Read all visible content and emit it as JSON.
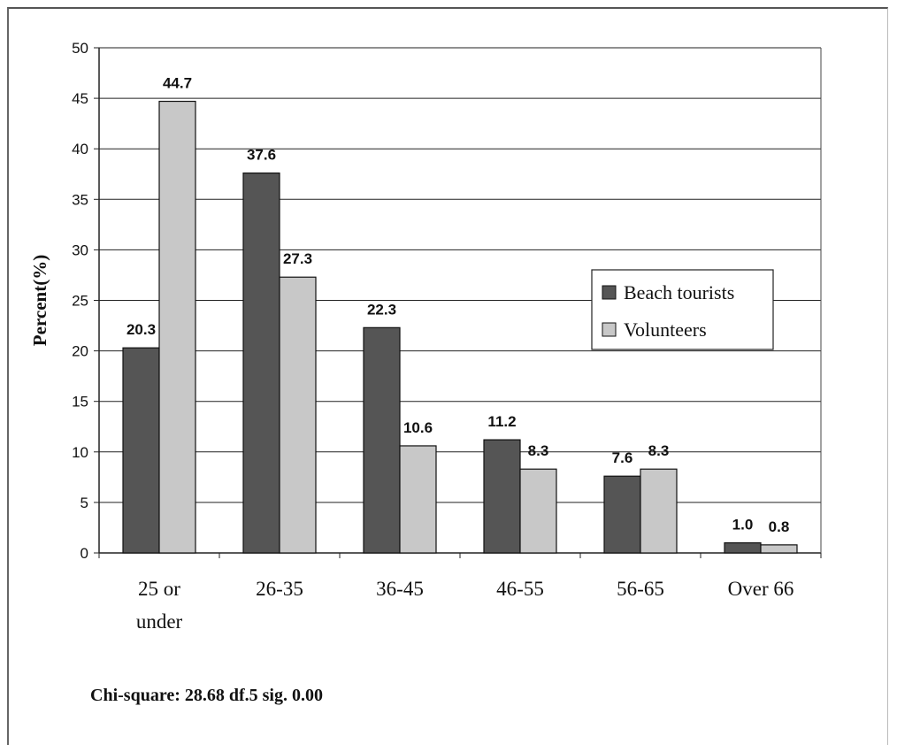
{
  "chart_data": {
    "type": "bar",
    "title": "",
    "xlabel": "",
    "ylabel": "Percent(%)",
    "ylim": [
      0,
      50
    ],
    "yticks": [
      0,
      5,
      10,
      15,
      20,
      25,
      30,
      35,
      40,
      45,
      50
    ],
    "grid": true,
    "legend_position": "right",
    "categories": [
      [
        "25 or",
        "under"
      ],
      [
        "26-35"
      ],
      [
        "36-45"
      ],
      [
        "46-55"
      ],
      [
        "56-65"
      ],
      [
        "Over 66"
      ]
    ],
    "series": [
      {
        "name": "Beach tourists",
        "color": "#555555",
        "values": [
          20.3,
          37.6,
          22.3,
          11.2,
          7.6,
          1.0
        ],
        "labels": [
          "20.3",
          "37.6",
          "22.3",
          "11.2",
          "7.6",
          "1.0"
        ]
      },
      {
        "name": "Volunteers",
        "color": "#c8c8c8",
        "values": [
          44.7,
          27.3,
          10.6,
          8.3,
          8.3,
          0.8
        ],
        "labels": [
          "44.7",
          "27.3",
          "10.6",
          "8.3",
          "8.3",
          "0.8"
        ]
      }
    ]
  },
  "footnote": "Chi-square: 28.68  df.5  sig. 0.00"
}
